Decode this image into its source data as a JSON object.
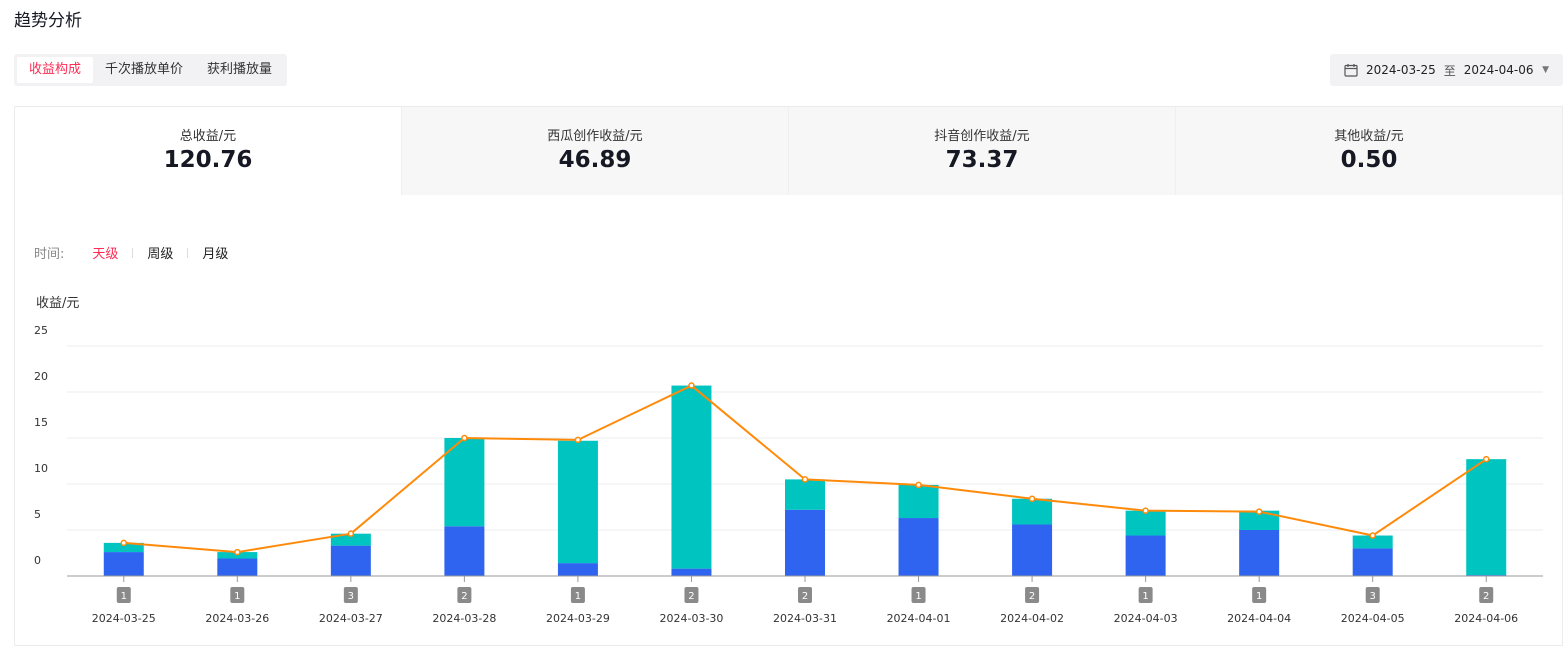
{
  "page": {
    "title": "趋势分析"
  },
  "tabs": [
    {
      "label": "收益构成",
      "active": true
    },
    {
      "label": "千次播放单价",
      "active": false
    },
    {
      "label": "获利播放量",
      "active": false
    }
  ],
  "date_range": {
    "start": "2024-03-25",
    "separator": "至",
    "end": "2024-04-06"
  },
  "stats": [
    {
      "label": "总收益/元",
      "value": "120.76",
      "active": true
    },
    {
      "label": "西瓜创作收益/元",
      "value": "46.89",
      "active": false
    },
    {
      "label": "抖音创作收益/元",
      "value": "73.37",
      "active": false
    },
    {
      "label": "其他收益/元",
      "value": "0.50",
      "active": false
    }
  ],
  "granularity": {
    "label": "时间:",
    "options": [
      {
        "label": "天级",
        "active": true
      },
      {
        "label": "周级",
        "active": false
      },
      {
        "label": "月级",
        "active": false
      }
    ]
  },
  "colors": {
    "accent": "#fe2c55",
    "bar_blue": "#2f64f0",
    "bar_teal": "#00c4c0",
    "line": "#ff8a0a",
    "badge": "#8a8a8a"
  },
  "chart_data": {
    "type": "bar",
    "stacked": true,
    "ylabel": "收益/元",
    "ylim": [
      0,
      25
    ],
    "yticks": [
      0,
      5,
      10,
      15,
      20,
      25
    ],
    "grid": true,
    "categories": [
      "2024-03-25",
      "2024-03-26",
      "2024-03-27",
      "2024-03-28",
      "2024-03-29",
      "2024-03-30",
      "2024-03-31",
      "2024-04-01",
      "2024-04-02",
      "2024-04-03",
      "2024-04-04",
      "2024-04-05",
      "2024-04-06"
    ],
    "series": [
      {
        "values": [
          2.6,
          1.9,
          3.3,
          5.4,
          1.4,
          0.8,
          7.2,
          6.3,
          5.6,
          4.4,
          5.0,
          3.0,
          0.1
        ]
      },
      {
        "values": [
          1.0,
          0.7,
          1.3,
          9.6,
          13.3,
          19.9,
          3.3,
          3.6,
          2.8,
          2.7,
          2.1,
          1.4,
          12.6
        ]
      }
    ],
    "line_values": [
      3.6,
      2.6,
      4.6,
      15.0,
      14.8,
      20.7,
      10.5,
      9.9,
      8.4,
      7.1,
      7.0,
      4.4,
      12.7
    ],
    "badges": [
      "1",
      "1",
      "3",
      "2",
      "1",
      "2",
      "2",
      "1",
      "2",
      "1",
      "1",
      "3",
      "2"
    ]
  }
}
